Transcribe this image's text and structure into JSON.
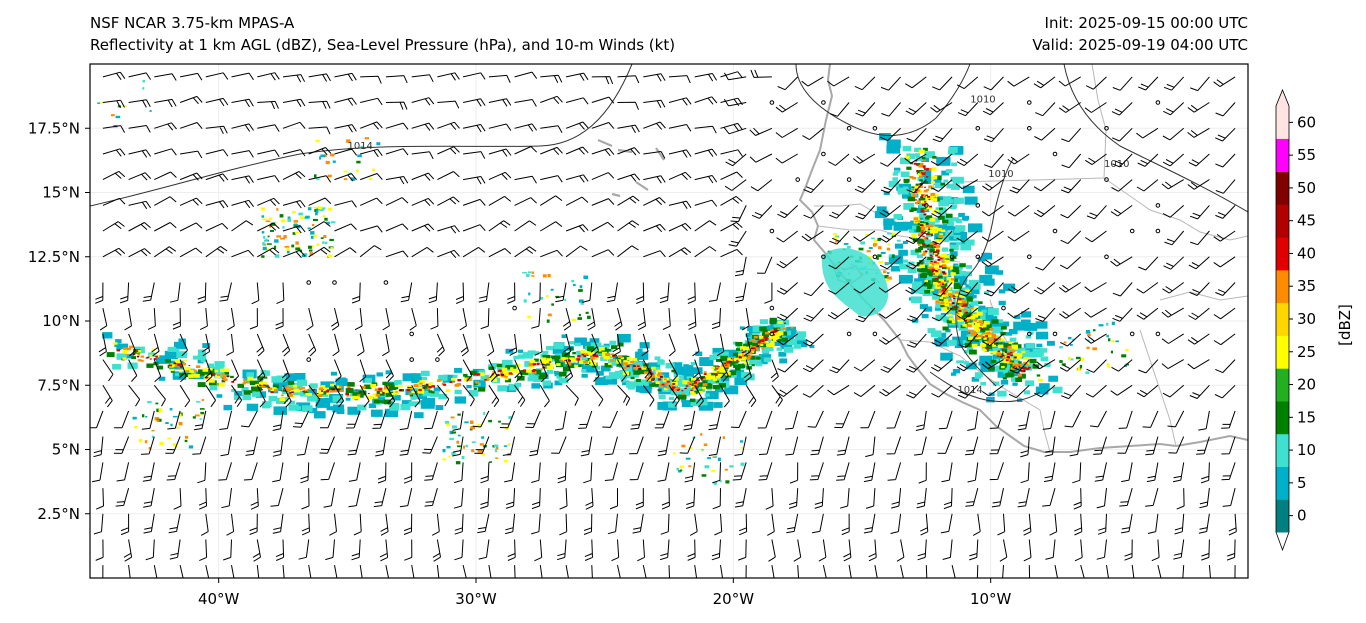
{
  "header": {
    "model": "NSF NCAR 3.75-km MPAS-A",
    "description": "Reflectivity at 1 km AGL (dBZ), Sea-Level Pressure (hPa), and 10-m Winds (kt)",
    "init": "Init: 2025-09-15 00:00 UTC",
    "valid": "Valid: 2025-09-19 04:00 UTC"
  },
  "map": {
    "lon_range": [
      -45,
      0
    ],
    "lat_range": [
      0,
      20
    ],
    "lat_ticks": [
      {
        "value": 17.5,
        "label": "17.5°N"
      },
      {
        "value": 15,
        "label": "15°N"
      },
      {
        "value": 12.5,
        "label": "12.5°N"
      },
      {
        "value": 10,
        "label": "10°N"
      },
      {
        "value": 7.5,
        "label": "7.5°N"
      },
      {
        "value": 5,
        "label": "5°N"
      },
      {
        "value": 2.5,
        "label": "2.5°N"
      }
    ],
    "lon_ticks": [
      {
        "value": -40,
        "label": "40°W"
      },
      {
        "value": -30,
        "label": "30°W"
      },
      {
        "value": -20,
        "label": "20°W"
      },
      {
        "value": -10,
        "label": "10°W"
      }
    ],
    "isobar_labels": [
      {
        "text": "1014",
        "lon": -34.5,
        "lat": 16.7
      },
      {
        "text": "1010",
        "lon": -10.3,
        "lat": 18.5
      },
      {
        "text": "1010",
        "lon": -9.6,
        "lat": 15.6
      },
      {
        "text": "1010",
        "lon": -5.1,
        "lat": 16.0
      },
      {
        "text": "1014",
        "lon": -10.8,
        "lat": 7.2
      }
    ],
    "coastline_color": "#a0a0a0",
    "isobar_color": "#333333"
  },
  "colorbar": {
    "label": "[dBZ]",
    "ticks": [
      "0",
      "5",
      "10",
      "15",
      "20",
      "25",
      "30",
      "35",
      "40",
      "45",
      "50",
      "55",
      "60"
    ],
    "colors": [
      "#008080",
      "#00b0c8",
      "#40e0d0",
      "#008000",
      "#22b022",
      "#ffff00",
      "#ffd700",
      "#ff8c00",
      "#e00000",
      "#b00000",
      "#800000",
      "#ff00ff",
      "#ffe4e1"
    ]
  },
  "reflectivity_bands": [
    {
      "name": "main-itcz-band",
      "points": [
        [
          -44,
          9
        ],
        [
          -38,
          7.3
        ],
        [
          -33,
          7.3
        ],
        [
          -28,
          8.2
        ],
        [
          -25,
          8.8
        ],
        [
          -22,
          7.3
        ],
        [
          -20,
          8.5
        ],
        [
          -18,
          9.9
        ]
      ]
    },
    {
      "name": "west-african-squall-line",
      "points": [
        [
          -12.8,
          16.3
        ],
        [
          -12.5,
          13.3
        ],
        [
          -11.8,
          11.1
        ],
        [
          -10.3,
          9.4
        ],
        [
          -8.7,
          8.1
        ]
      ]
    }
  ]
}
